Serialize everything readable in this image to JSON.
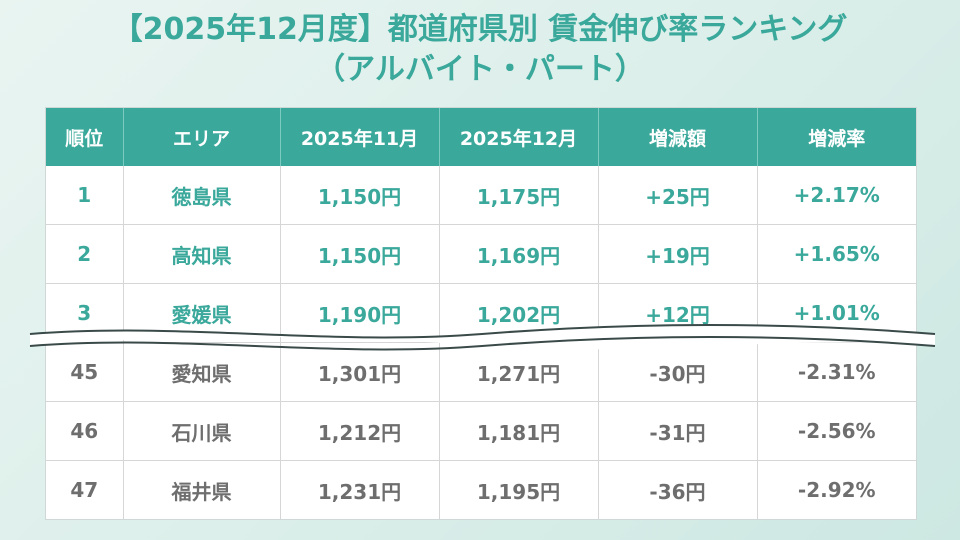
{
  "title": {
    "line1": "【2025年12月度】都道府県別 賃金伸び率ランキング",
    "line2": "（アルバイト・パート）"
  },
  "table": {
    "headers": [
      "順位",
      "エリア",
      "2025年11月",
      "2025年12月",
      "増減額",
      "増減率"
    ],
    "top_rows": [
      {
        "rank": "1",
        "area": "徳島県",
        "nov": "1,150円",
        "dec": "1,175円",
        "diff": "+25円",
        "rate": "+2.17%"
      },
      {
        "rank": "2",
        "area": "高知県",
        "nov": "1,150円",
        "dec": "1,169円",
        "diff": "+19円",
        "rate": "+1.65%"
      },
      {
        "rank": "3",
        "area": "愛媛県",
        "nov": "1,190円",
        "dec": "1,202円",
        "diff": "+12円",
        "rate": "+1.01%"
      }
    ],
    "bottom_rows": [
      {
        "rank": "45",
        "area": "愛知県",
        "nov": "1,301円",
        "dec": "1,271円",
        "diff": "-30円",
        "rate": "-2.31%"
      },
      {
        "rank": "46",
        "area": "石川県",
        "nov": "1,212円",
        "dec": "1,181円",
        "diff": "-31円",
        "rate": "-2.56%"
      },
      {
        "rank": "47",
        "area": "福井県",
        "nov": "1,231円",
        "dec": "1,195円",
        "diff": "-36円",
        "rate": "-2.92%"
      }
    ]
  },
  "colors": {
    "accent": "#3aa89b",
    "muted_text": "#6e6e6e"
  }
}
